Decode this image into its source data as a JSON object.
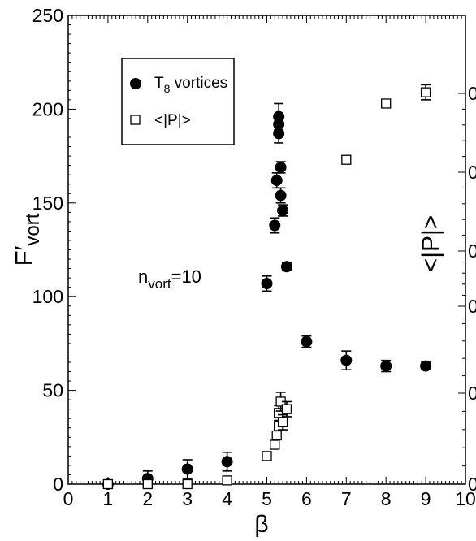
{
  "chart_data": {
    "type": "scatter",
    "xlabel": "β",
    "ylabel": {
      "main": "F′",
      "sub": "vort"
    },
    "y2label": "<|P|>",
    "xlim": [
      0,
      10
    ],
    "ylim": [
      0,
      250
    ],
    "x_ticks": [
      "0",
      "1",
      "2",
      "3",
      "4",
      "5",
      "6",
      "7",
      "8",
      "9",
      "10"
    ],
    "y_ticks": [
      "0",
      "50",
      "100",
      "150",
      "200",
      "250"
    ],
    "y2_ticks": [
      "0",
      "0",
      "0",
      "0",
      "0",
      "0"
    ],
    "annotation": {
      "main": "n",
      "sub": "vort",
      "rest": "=10"
    },
    "legend": {
      "position": "top-left",
      "entries": [
        {
          "label_main": "T",
          "label_sub": "8",
          "label_rest": " vortices",
          "marker": "filled-circle"
        },
        {
          "label_main": "<|P|>",
          "label_sub": "",
          "label_rest": "",
          "marker": "open-square"
        }
      ]
    },
    "series": [
      {
        "marker": "filled-circle",
        "points": [
          {
            "x": 1.0,
            "y": 0,
            "err": 2
          },
          {
            "x": 2.0,
            "y": 3,
            "err": 4
          },
          {
            "x": 3.0,
            "y": 8,
            "err": 5
          },
          {
            "x": 4.0,
            "y": 12,
            "err": 5
          },
          {
            "x": 5.0,
            "y": 107,
            "err": 4
          },
          {
            "x": 5.2,
            "y": 138,
            "err": 4
          },
          {
            "x": 5.25,
            "y": 162,
            "err": 4
          },
          {
            "x": 5.3,
            "y": 187,
            "err": 5
          },
          {
            "x": 5.3,
            "y": 192,
            "err": 5
          },
          {
            "x": 5.3,
            "y": 196,
            "err": 7
          },
          {
            "x": 5.35,
            "y": 169,
            "err": 3
          },
          {
            "x": 5.35,
            "y": 154,
            "err": 4
          },
          {
            "x": 5.4,
            "y": 146,
            "err": 3
          },
          {
            "x": 5.5,
            "y": 116,
            "err": 2
          },
          {
            "x": 6.0,
            "y": 76,
            "err": 3
          },
          {
            "x": 7.0,
            "y": 66,
            "err": 5
          },
          {
            "x": 8.0,
            "y": 63,
            "err": 3
          },
          {
            "x": 9.0,
            "y": 63,
            "err": 2
          }
        ]
      },
      {
        "marker": "open-square",
        "points": [
          {
            "x": 1.0,
            "y": 0,
            "err": 0
          },
          {
            "x": 2.0,
            "y": 0,
            "err": 0
          },
          {
            "x": 3.0,
            "y": 0,
            "err": 0
          },
          {
            "x": 4.0,
            "y": 2,
            "err": 0
          },
          {
            "x": 5.0,
            "y": 15,
            "err": 0
          },
          {
            "x": 5.2,
            "y": 21,
            "err": 0
          },
          {
            "x": 5.25,
            "y": 26,
            "err": 0
          },
          {
            "x": 5.3,
            "y": 31,
            "err": 0
          },
          {
            "x": 5.3,
            "y": 38,
            "err": 4
          },
          {
            "x": 5.35,
            "y": 44,
            "err": 5
          },
          {
            "x": 5.4,
            "y": 33,
            "err": 4
          },
          {
            "x": 5.5,
            "y": 40,
            "err": 4
          },
          {
            "x": 7.0,
            "y": 173,
            "err": 0
          },
          {
            "x": 8.0,
            "y": 203,
            "err": 0
          },
          {
            "x": 9.0,
            "y": 209,
            "err": 4
          }
        ]
      }
    ]
  }
}
